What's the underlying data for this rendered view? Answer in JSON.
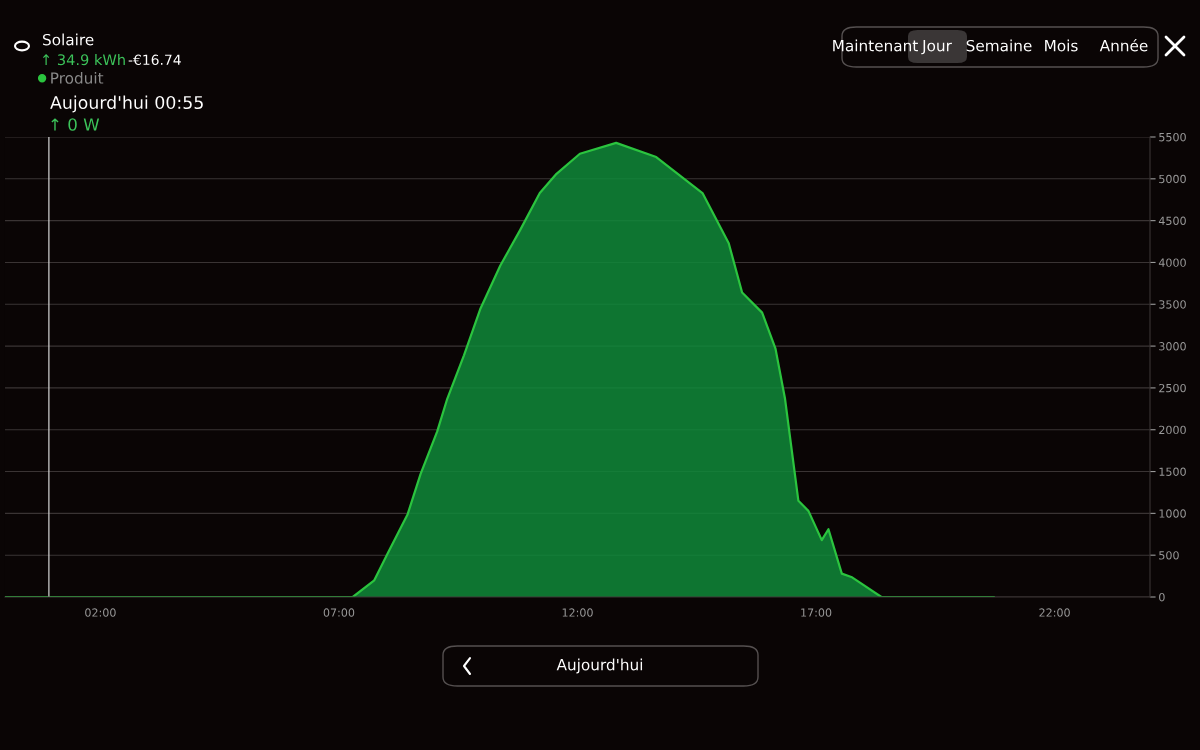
{
  "chart_data": {
    "type": "area",
    "title": "Solaire",
    "x": [
      0,
      6.98,
      7.29,
      7.74,
      8.02,
      8.44,
      8.71,
      9.06,
      9.27,
      9.62,
      9.96,
      10.38,
      10.8,
      11.21,
      11.56,
      12.05,
      12.81,
      13.65,
      14.62,
      15.17,
      15.45,
      15.87,
      16.15,
      16.35,
      16.63,
      16.84,
      17.12,
      17.26,
      17.54,
      17.74,
      18.37,
      20.73
    ],
    "series": [
      {
        "name": "Produit",
        "color": "#2bc43f",
        "values": [
          0,
          0,
          0,
          200,
          520,
          990,
          1470,
          1980,
          2370,
          2890,
          3440,
          3960,
          4390,
          4830,
          5060,
          5300,
          5430,
          5260,
          4830,
          4230,
          3640,
          3400,
          2970,
          2370,
          1150,
          1030,
          680,
          810,
          280,
          240,
          0,
          0
        ]
      }
    ],
    "xlim": [
      0,
      24
    ],
    "xticks": [
      {
        "value": 2,
        "label": "02:00"
      },
      {
        "value": 7,
        "label": "07:00"
      },
      {
        "value": 12,
        "label": "12:00"
      },
      {
        "value": 17,
        "label": "17:00"
      },
      {
        "value": 22,
        "label": "22:00"
      }
    ],
    "ylim": [
      0,
      5500
    ],
    "yticks": [
      0,
      500,
      1000,
      1500,
      2000,
      2500,
      3000,
      3500,
      4000,
      4500,
      5000,
      5500
    ],
    "grid": "y",
    "legend": "top left",
    "ref_lines": [
      {
        "axis": "x",
        "value": 0.92,
        "color": "#cfcfcf"
      }
    ],
    "annotations": [
      "↑ 34.9 kWh",
      "-€16.74",
      "Aujourd'hui 00:55",
      "↑ 0 W",
      "Maintenant",
      "Jour",
      "Semaine",
      "Mois",
      "Année",
      "Aujourd'hui"
    ]
  }
}
